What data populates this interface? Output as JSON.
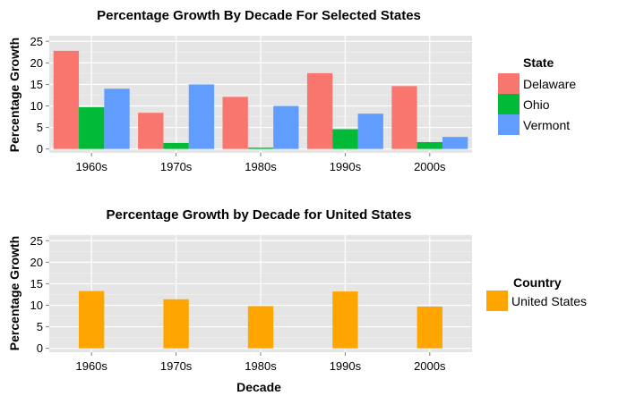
{
  "chart_data": [
    {
      "type": "bar",
      "title": "Percentage Growth By Decade For Selected States",
      "xlabel": "",
      "ylabel": "Percentage Growth",
      "ylim": [
        -0.9,
        26.3
      ],
      "yticks": [
        0,
        5,
        10,
        15,
        20,
        25
      ],
      "grid": true,
      "legend_placement": "right",
      "legend_title": "State",
      "categories": [
        "1960s",
        "1970s",
        "1980s",
        "1990s",
        "2000s"
      ],
      "series": [
        {
          "name": "Delaware",
          "color": "#F8766D",
          "values": [
            22.8,
            8.4,
            12.1,
            17.6,
            14.6
          ]
        },
        {
          "name": "Ohio",
          "color": "#00BA38",
          "values": [
            9.7,
            1.4,
            0.3,
            4.6,
            1.6
          ]
        },
        {
          "name": "Vermont",
          "color": "#619CFF",
          "values": [
            14.0,
            15.0,
            10.0,
            8.2,
            2.8
          ]
        }
      ]
    },
    {
      "type": "bar",
      "title": "Percentage Growth by Decade for United States",
      "xlabel": "Decade",
      "ylabel": "Percentage Growth",
      "ylim": [
        -0.9,
        26.3
      ],
      "yticks": [
        0,
        5,
        10,
        15,
        20,
        25
      ],
      "grid": true,
      "legend_placement": "right",
      "legend_title": "Country",
      "categories": [
        "1960s",
        "1970s",
        "1980s",
        "1990s",
        "2000s"
      ],
      "series": [
        {
          "name": "United States",
          "color": "#FFA500",
          "values": [
            13.3,
            11.4,
            9.8,
            13.2,
            9.7
          ]
        }
      ]
    }
  ]
}
